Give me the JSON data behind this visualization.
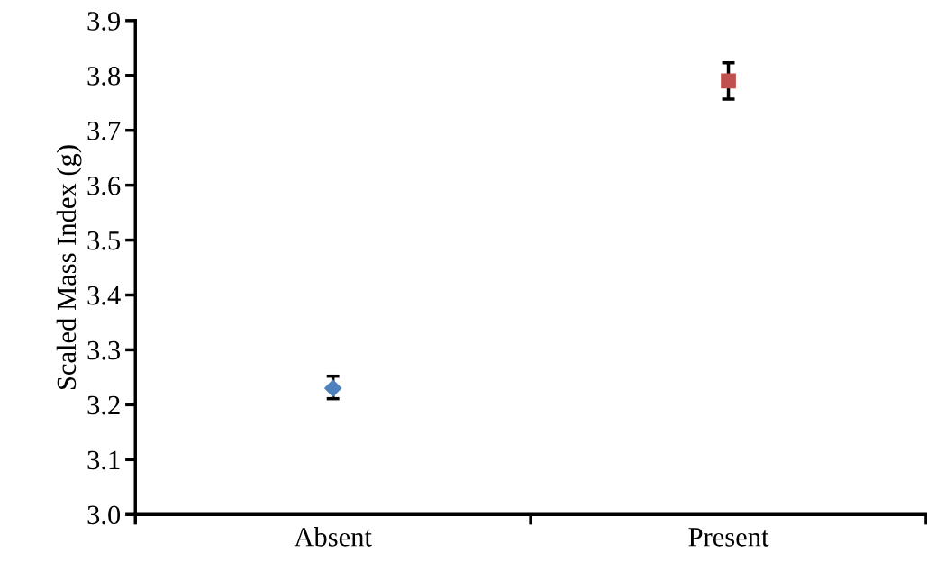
{
  "chart_data": {
    "type": "scatter",
    "ylabel": "Scaled Mass Index (g)",
    "categories": [
      "Absent",
      "Present"
    ],
    "series": [
      {
        "color": "#4f81bd",
        "marker": "diamond",
        "values": [
          3.23,
          null
        ],
        "errors": [
          [
            3.211,
            3.252
          ],
          null
        ]
      },
      {
        "color": "#c0504d",
        "marker": "square",
        "values": [
          null,
          3.79
        ],
        "errors": [
          null,
          [
            3.757,
            3.823
          ]
        ]
      }
    ],
    "ylim": [
      3.0,
      3.9
    ],
    "yticks": [
      {
        "value": 3.0,
        "label": "3.0"
      },
      3.1,
      3.2,
      3.3,
      3.4,
      3.5,
      3.6,
      3.7,
      3.8,
      3.9
    ],
    "grid": false,
    "legend": false
  }
}
